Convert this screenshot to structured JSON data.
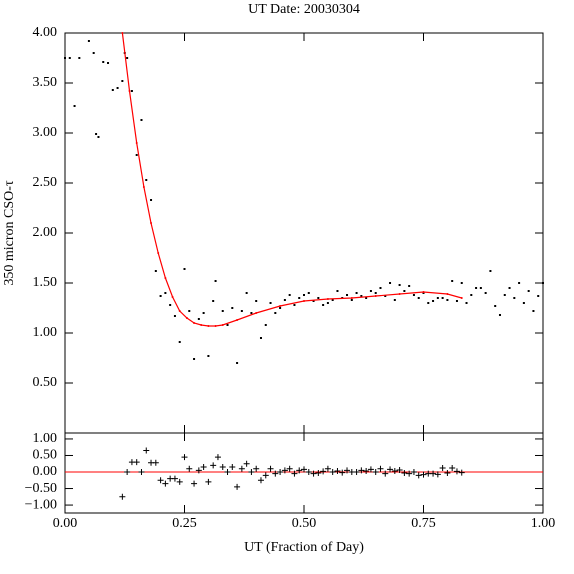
{
  "chart_data": [
    {
      "type": "scatter",
      "title": "UT Date: 20030304",
      "ylabel": "350 micron CSO-τ",
      "x": [
        0.0,
        0.01,
        0.02,
        0.03,
        0.05,
        0.06,
        0.065,
        0.07,
        0.08,
        0.09,
        0.1,
        0.11,
        0.12,
        0.125,
        0.13,
        0.14,
        0.15,
        0.16,
        0.17,
        0.18,
        0.19,
        0.2,
        0.21,
        0.22,
        0.23,
        0.24,
        0.25,
        0.26,
        0.27,
        0.28,
        0.29,
        0.3,
        0.31,
        0.315,
        0.33,
        0.34,
        0.35,
        0.36,
        0.37,
        0.38,
        0.39,
        0.4,
        0.41,
        0.42,
        0.43,
        0.44,
        0.45,
        0.46,
        0.47,
        0.48,
        0.49,
        0.5,
        0.51,
        0.52,
        0.53,
        0.54,
        0.55,
        0.56,
        0.57,
        0.58,
        0.59,
        0.6,
        0.61,
        0.62,
        0.63,
        0.64,
        0.65,
        0.66,
        0.67,
        0.68,
        0.69,
        0.7,
        0.71,
        0.72,
        0.73,
        0.74,
        0.75,
        0.76,
        0.77,
        0.78,
        0.79,
        0.8,
        0.81,
        0.82,
        0.83,
        0.84,
        0.85,
        0.86,
        0.87,
        0.88,
        0.89,
        0.9,
        0.91,
        0.92,
        0.93,
        0.94,
        0.95,
        0.96,
        0.97,
        0.98,
        0.99,
        1.0
      ],
      "values": [
        3.75,
        3.75,
        3.27,
        3.75,
        3.92,
        3.8,
        2.99,
        2.96,
        3.71,
        3.7,
        3.43,
        3.45,
        3.52,
        3.8,
        3.75,
        3.42,
        2.78,
        3.13,
        2.53,
        2.33,
        1.62,
        1.37,
        1.4,
        1.28,
        1.17,
        0.91,
        1.64,
        1.22,
        0.74,
        1.14,
        1.2,
        0.77,
        1.32,
        1.52,
        1.22,
        1.08,
        1.25,
        0.7,
        1.22,
        1.4,
        1.2,
        1.32,
        0.95,
        1.08,
        1.3,
        1.2,
        1.25,
        1.33,
        1.38,
        1.28,
        1.35,
        1.38,
        1.4,
        1.32,
        1.35,
        1.28,
        1.3,
        1.33,
        1.42,
        1.35,
        1.38,
        1.33,
        1.4,
        1.37,
        1.35,
        1.42,
        1.4,
        1.45,
        1.37,
        1.5,
        1.33,
        1.48,
        1.42,
        1.47,
        1.38,
        1.35,
        1.4,
        1.3,
        1.32,
        1.35,
        1.35,
        1.33,
        1.52,
        1.32,
        1.5,
        1.3,
        1.38,
        1.45,
        1.45,
        1.4,
        1.62,
        1.27,
        1.18,
        1.38,
        1.45,
        1.35,
        1.5,
        1.3,
        1.42,
        1.22,
        1.37,
        1.5
      ],
      "color": "#000000",
      "fit_x": [
        0.12,
        0.135,
        0.15,
        0.165,
        0.18,
        0.195,
        0.21,
        0.225,
        0.24,
        0.255,
        0.27,
        0.285,
        0.3,
        0.315,
        0.33,
        0.36,
        0.4,
        0.45,
        0.5,
        0.55,
        0.6,
        0.65,
        0.7,
        0.75,
        0.8,
        0.83
      ],
      "fit_values": [
        4.0,
        3.42,
        2.9,
        2.46,
        2.1,
        1.8,
        1.55,
        1.36,
        1.22,
        1.15,
        1.1,
        1.08,
        1.07,
        1.07,
        1.08,
        1.13,
        1.2,
        1.27,
        1.32,
        1.34,
        1.35,
        1.37,
        1.39,
        1.41,
        1.39,
        1.35
      ],
      "fit_color": "#ff0000",
      "xlim": [
        0,
        1
      ],
      "ylim": [
        0,
        4
      ],
      "yticks": [
        {
          "value": 0.5,
          "label": "0.50"
        },
        {
          "value": 1,
          "label": "1.00"
        },
        {
          "value": 1.5,
          "label": "1.50"
        },
        {
          "value": 2,
          "label": "2.00"
        },
        {
          "value": 2.5,
          "label": "2.50"
        },
        {
          "value": 3,
          "label": "3.00"
        },
        {
          "value": 3.5,
          "label": "3.50"
        },
        {
          "value": 4,
          "label": "4.00"
        }
      ]
    },
    {
      "type": "residual",
      "xlabel": "UT (Fraction of Day)",
      "x": [
        0.12,
        0.13,
        0.14,
        0.15,
        0.16,
        0.17,
        0.18,
        0.19,
        0.2,
        0.21,
        0.22,
        0.23,
        0.24,
        0.25,
        0.26,
        0.27,
        0.28,
        0.29,
        0.3,
        0.31,
        0.32,
        0.33,
        0.34,
        0.35,
        0.36,
        0.37,
        0.38,
        0.39,
        0.4,
        0.41,
        0.42,
        0.43,
        0.44,
        0.45,
        0.46,
        0.47,
        0.48,
        0.49,
        0.5,
        0.51,
        0.52,
        0.53,
        0.54,
        0.55,
        0.56,
        0.57,
        0.58,
        0.59,
        0.6,
        0.61,
        0.62,
        0.63,
        0.64,
        0.65,
        0.66,
        0.67,
        0.68,
        0.69,
        0.7,
        0.71,
        0.72,
        0.73,
        0.74,
        0.75,
        0.76,
        0.77,
        0.78,
        0.79,
        0.8,
        0.81,
        0.82,
        0.83
      ],
      "values": [
        -0.75,
        0.0,
        0.3,
        0.3,
        0.0,
        0.65,
        0.28,
        0.28,
        -0.25,
        -0.35,
        -0.2,
        -0.2,
        -0.3,
        0.45,
        0.1,
        -0.35,
        0.05,
        0.15,
        -0.3,
        0.2,
        0.45,
        0.15,
        0.0,
        0.15,
        -0.45,
        0.1,
        0.25,
        0.0,
        0.1,
        -0.25,
        -0.1,
        0.1,
        -0.05,
        0.0,
        0.05,
        0.1,
        -0.05,
        0.05,
        0.08,
        0.0,
        -0.05,
        -0.03,
        0.02,
        0.1,
        0.0,
        0.03,
        -0.02,
        0.05,
        0.0,
        0.0,
        0.05,
        0.03,
        0.08,
        0.0,
        0.1,
        -0.05,
        0.08,
        0.03,
        0.06,
        -0.03,
        -0.05,
        0.0,
        -0.1,
        -0.08,
        -0.05,
        -0.05,
        -0.07,
        0.12,
        -0.03,
        0.12,
        0.02,
        -0.02
      ],
      "color": "#000000",
      "reference_line": 0,
      "reference_color": "#ff0000",
      "xlim": [
        0,
        1
      ],
      "ylim": [
        -1.24,
        1.18
      ],
      "xticks": [
        {
          "value": 0,
          "label": "0.00"
        },
        {
          "value": 0.25,
          "label": "0.25"
        },
        {
          "value": 0.5,
          "label": "0.50"
        },
        {
          "value": 0.75,
          "label": "0.75"
        },
        {
          "value": 1,
          "label": "1.00"
        }
      ],
      "yticks": [
        {
          "value": -1,
          "label": "−1.00"
        },
        {
          "value": -0.5,
          "label": "−0.50"
        },
        {
          "value": 0,
          "label": "0.00"
        },
        {
          "value": 0.5,
          "label": "0.50"
        },
        {
          "value": 1,
          "label": "1.00"
        }
      ]
    }
  ]
}
